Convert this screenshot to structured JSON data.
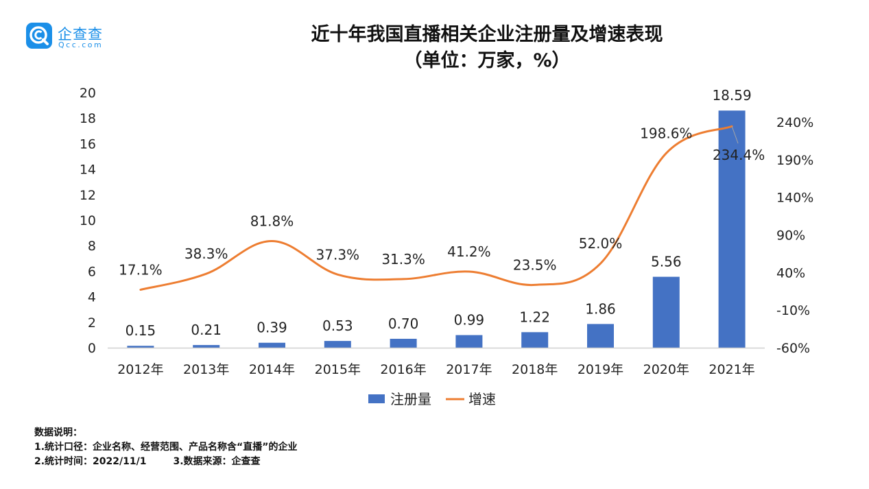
{
  "logo": {
    "cn": "企查查",
    "en": "Qcc.com",
    "icon": "qcc-magnifier-icon"
  },
  "title": {
    "line1": "近十年我国直播相关企业注册量及增速表现",
    "line2": "（单位：万家，%）"
  },
  "chart_data": {
    "type": "bar+line",
    "categories": [
      "2012年",
      "2013年",
      "2014年",
      "2015年",
      "2016年",
      "2017年",
      "2018年",
      "2019年",
      "2020年",
      "2021年"
    ],
    "series": [
      {
        "name": "注册量",
        "type": "bar",
        "axis": "left",
        "color": "#4472c4",
        "values": [
          0.15,
          0.21,
          0.39,
          0.53,
          0.7,
          0.99,
          1.22,
          1.86,
          5.56,
          18.59
        ],
        "labels": [
          "0.15",
          "0.21",
          "0.39",
          "0.53",
          "0.70",
          "0.99",
          "1.22",
          "1.86",
          "5.56",
          "18.59"
        ]
      },
      {
        "name": "增速",
        "type": "line",
        "axis": "right",
        "color": "#ed7d31",
        "values": [
          17.1,
          38.3,
          81.8,
          37.3,
          31.3,
          41.2,
          23.5,
          52.0,
          198.6,
          234.4
        ],
        "labels": [
          "17.1%",
          "38.3%",
          "81.8%",
          "37.3%",
          "31.3%",
          "41.2%",
          "23.5%",
          "52.0%",
          "198.6%",
          "234.4%"
        ]
      }
    ],
    "y_left": {
      "min": 0,
      "max": 20,
      "ticks": [
        "0",
        "2",
        "4",
        "6",
        "8",
        "10",
        "12",
        "14",
        "16",
        "18",
        "20"
      ]
    },
    "y_right": {
      "min": -60,
      "max": 240,
      "ticks": [
        "-60%",
        "-10%",
        "40%",
        "90%",
        "140%",
        "190%",
        "240%"
      ]
    },
    "legend": {
      "position": "bottom"
    },
    "grid": false
  },
  "notes": {
    "heading": "数据说明：",
    "line1": "1.统计口径：企业名称、经营范围、产品名称含“直播”的企业",
    "line2": "2.统计时间：2022/11/1        3.数据来源：企查查"
  }
}
